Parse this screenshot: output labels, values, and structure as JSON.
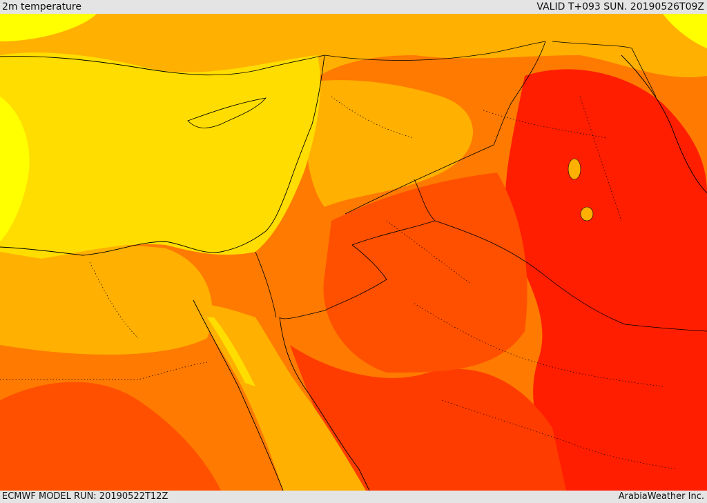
{
  "header": {
    "title": "2m temperature",
    "valid": "VALID T+093 SUN. 20190526T09Z"
  },
  "footer": {
    "model_run": "ECMWF MODEL RUN: 20190522T12Z",
    "credit": "ArabiaWeather Inc."
  },
  "colors": {
    "mediterranean": "#ffdd00",
    "sea_coast_yellow": "#ffff00",
    "warm": "#ffb000",
    "hot": "#ff7a00",
    "hotter": "#ff5000",
    "hottest": "#ff1e00",
    "boundary": "#000000"
  }
}
